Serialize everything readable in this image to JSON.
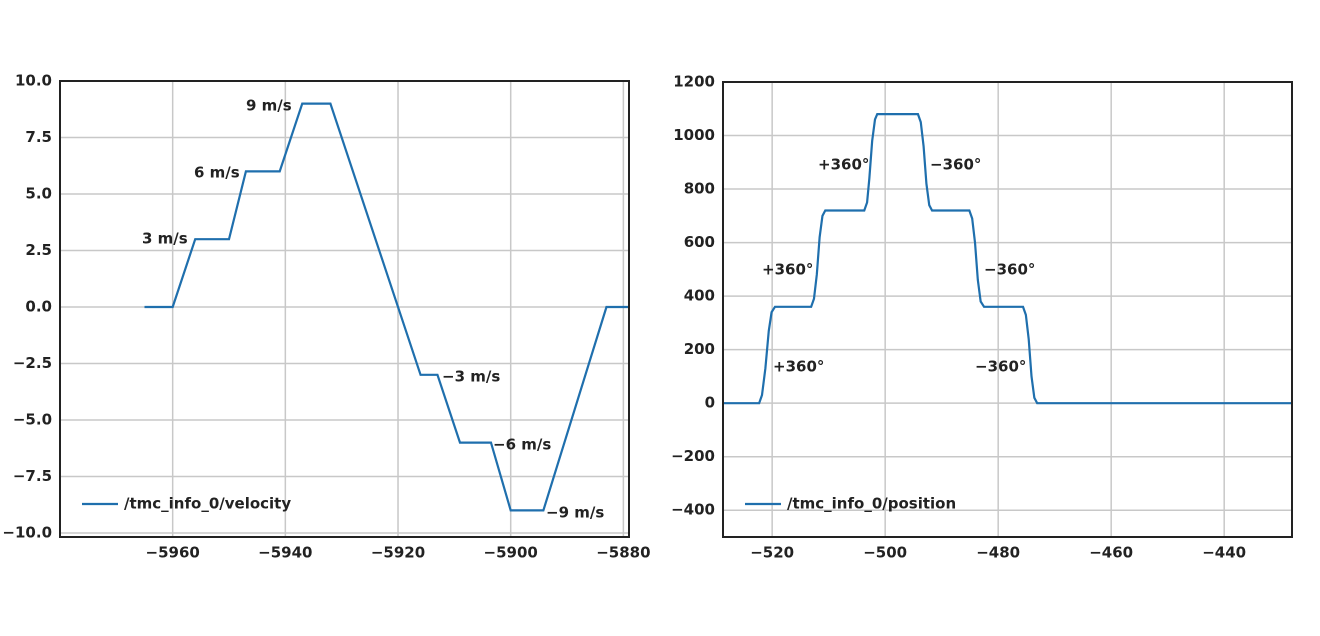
{
  "chart_data": [
    {
      "type": "line",
      "x": [
        -5965,
        -5960,
        -5956,
        -5950,
        -5947,
        -5941,
        -5937,
        -5932,
        -5916,
        -5913,
        -5909,
        -5903.5,
        -5900,
        -5894.2,
        -5883,
        -5879
      ],
      "series": [
        {
          "name": "/tmc_info_0/velocity",
          "color": "#1f6fad",
          "values": [
            0,
            0,
            3,
            3,
            6,
            6,
            9,
            9,
            -3,
            -3,
            -6,
            -6,
            -9,
            -9,
            0,
            0
          ]
        }
      ],
      "xlim": [
        -5980,
        -5879
      ],
      "ylim": [
        -10,
        10
      ],
      "xticks": [
        {
          "value": -5960,
          "label": "−5960"
        },
        {
          "value": -5940,
          "label": "−5940"
        },
        {
          "value": -5920,
          "label": "−5920"
        },
        {
          "value": -5900,
          "label": "−5900"
        },
        {
          "value": -5880,
          "label": "−5880"
        }
      ],
      "yticks": [
        {
          "value": 10,
          "label": "10.0"
        },
        7.5,
        {
          "value": 5,
          "label": "5.0"
        },
        2.5,
        {
          "value": 0,
          "label": "0.0"
        },
        {
          "value": -2.5,
          "label": "−2.5"
        },
        {
          "value": -5,
          "label": "−5.0"
        },
        {
          "value": -7.5,
          "label": "−7.5"
        },
        {
          "value": -10,
          "label": "−10.0"
        }
      ],
      "annotations": [
        "9 m/s",
        "6 m/s",
        "3 m/s",
        "−3 m/s",
        "−6 m/s",
        "−9 m/s"
      ],
      "grid": true,
      "legend": "lower left"
    },
    {
      "type": "line",
      "x": [
        -528.7,
        -522.3,
        -521.8,
        -521.2,
        -520.6,
        -520.1,
        -519.5,
        -513.1,
        -512.6,
        -512.1,
        -511.6,
        -511.1,
        -510.6,
        -503.7,
        -503.2,
        -502.8,
        -502.3,
        -501.8,
        -501.4,
        -494.2,
        -493.7,
        -493.2,
        -492.7,
        -492.2,
        -491.7,
        -485.1,
        -484.6,
        -484.1,
        -483.6,
        -483.1,
        -482.5,
        -475.6,
        -475.1,
        -474.6,
        -474.1,
        -473.6,
        -473.1,
        -428
      ],
      "series": [
        {
          "name": "/tmc_info_0/position",
          "color": "#1f6fad",
          "values": [
            0,
            0,
            30,
            130,
            270,
            340,
            360,
            360,
            390,
            480,
            620,
            700,
            720,
            720,
            750,
            840,
            980,
            1060,
            1080,
            1080,
            1050,
            960,
            820,
            740,
            720,
            720,
            690,
            600,
            460,
            380,
            360,
            360,
            330,
            240,
            100,
            20,
            0,
            0
          ]
        }
      ],
      "xlim": [
        -528.7,
        -428
      ],
      "ylim": [
        -500,
        1200
      ],
      "xticks": [
        {
          "value": -520,
          "label": "−520"
        },
        {
          "value": -500,
          "label": "−500"
        },
        {
          "value": -480,
          "label": "−480"
        },
        {
          "value": -460,
          "label": "−460"
        },
        {
          "value": -440,
          "label": "−440"
        }
      ],
      "yticks": [
        1200,
        1000,
        800,
        600,
        400,
        200,
        0,
        {
          "value": -200,
          "label": "−200"
        },
        {
          "value": -400,
          "label": "−400"
        }
      ],
      "annotations": [
        "+360°",
        "−360°",
        "+360°",
        "−360°",
        "+360°",
        "−360°"
      ],
      "grid": true,
      "legend": "lower left"
    }
  ]
}
